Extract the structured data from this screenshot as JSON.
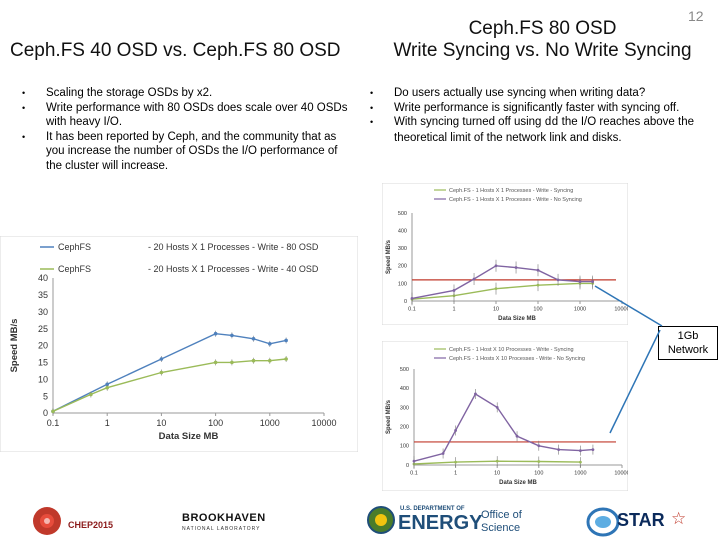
{
  "page_number": "12",
  "left": {
    "title": "Ceph.FS 40 OSD vs. Ceph.FS 80 OSD",
    "bullets": [
      "Scaling the storage OSDs by x2.",
      "Write performance with 80 OSDs does scale over 40 OSDs with heavy I/O.",
      "It has been reported by Ceph, and the community that as you increase the number of OSDs the I/O performance of the cluster will increase."
    ]
  },
  "right": {
    "title_line1": "Ceph.FS 80 OSD",
    "title_line2": "Write Syncing vs. No Write Syncing",
    "bullets": [
      {
        "before": "Do users actually use syncing when writing data?",
        "code": "",
        "after": ""
      },
      {
        "before": "Write performance is significantly faster with syncing off.",
        "code": "",
        "after": ""
      },
      {
        "before": "With syncing turned off using ",
        "code": "dd",
        "after": " the I/O reaches above the theoretical limit of the network link and disks."
      }
    ]
  },
  "network_label": "1Gb Network",
  "logos": {
    "chep": "CHEP2015",
    "bnl": "BROOKHAVEN",
    "bnl_sub": "NATIONAL LABORATORY",
    "doe_small": "U.S. DEPARTMENT OF",
    "doe": "ENERGY",
    "office1": "Office of",
    "office2": "Science",
    "star": "STAR"
  },
  "chart_data": [
    {
      "type": "line",
      "x_scale": "log",
      "xlabel": "Data Size MB",
      "ylabel": "Speed MB/s",
      "ylim": [
        0,
        40
      ],
      "yticks": [
        0,
        5,
        10,
        15,
        20,
        25,
        30,
        35,
        40
      ],
      "xticks": [
        "0.1",
        "1",
        "10",
        "100",
        "1000",
        "10000"
      ],
      "legend_position": "top",
      "legend_title": "CephFS",
      "series": [
        {
          "name": "- 20 Hosts X 1 Processes - Write - 80 OSD",
          "color": "#4f81bd",
          "x": [
            0.1,
            1,
            10,
            100,
            200,
            500,
            1000,
            2000
          ],
          "y": [
            0.5,
            8.5,
            16,
            23.5,
            23,
            22,
            20.5,
            21.5
          ]
        },
        {
          "name": "- 20 Hosts X 1 Processes - Write - 40 OSD",
          "color": "#9bbb59",
          "x": [
            0.1,
            0.5,
            1,
            10,
            100,
            200,
            500,
            1000,
            2000
          ],
          "y": [
            0.5,
            5.5,
            7.5,
            12,
            15,
            15,
            15.5,
            15.5,
            16
          ]
        }
      ]
    },
    {
      "type": "line",
      "x_scale": "log",
      "xlabel": "Data Size MB",
      "ylabel": "Speed MB/s",
      "ylim": [
        0,
        500
      ],
      "yticks": [
        0,
        100,
        200,
        300,
        400,
        500
      ],
      "xticks": [
        "0.1",
        "1",
        "10",
        "100",
        "1000",
        "10000"
      ],
      "legend_position": "top",
      "reference_line": 120,
      "series": [
        {
          "name": "Ceph.FS - 1 Hosts X 1 Processes - Write - Syncing",
          "color": "#9bbb59",
          "x": [
            0.1,
            1,
            10,
            100,
            1000,
            2000
          ],
          "y": [
            10,
            30,
            70,
            90,
            100,
            100
          ]
        },
        {
          "name": "Ceph.FS - 1 Hosts X 1 Processes - Write - No Syncing",
          "color": "#8064a2",
          "x": [
            0.1,
            1,
            3,
            10,
            30,
            100,
            300,
            1000,
            2000
          ],
          "y": [
            15,
            60,
            125,
            200,
            190,
            175,
            120,
            110,
            110
          ]
        }
      ]
    },
    {
      "type": "line",
      "x_scale": "log",
      "xlabel": "Data Size MB",
      "ylabel": "Speed MB/s",
      "ylim": [
        0,
        500
      ],
      "yticks": [
        0,
        100,
        200,
        300,
        400,
        500
      ],
      "xticks": [
        "0.1",
        "1",
        "10",
        "100",
        "1000",
        "10000"
      ],
      "legend_position": "top",
      "reference_line": 120,
      "series": [
        {
          "name": "Ceph.FS - 1 Host X 10 Processes - Write - Syncing",
          "color": "#9bbb59",
          "x": [
            0.1,
            1,
            10,
            100,
            1000
          ],
          "y": [
            5,
            15,
            20,
            18,
            15
          ]
        },
        {
          "name": "Ceph.FS - 1 Hosts X 10 Processes - Write - No Syncing",
          "color": "#8064a2",
          "x": [
            0.1,
            0.5,
            1,
            3,
            10,
            30,
            100,
            300,
            1000,
            2000
          ],
          "y": [
            20,
            60,
            180,
            370,
            300,
            150,
            100,
            80,
            75,
            80
          ]
        }
      ]
    }
  ]
}
